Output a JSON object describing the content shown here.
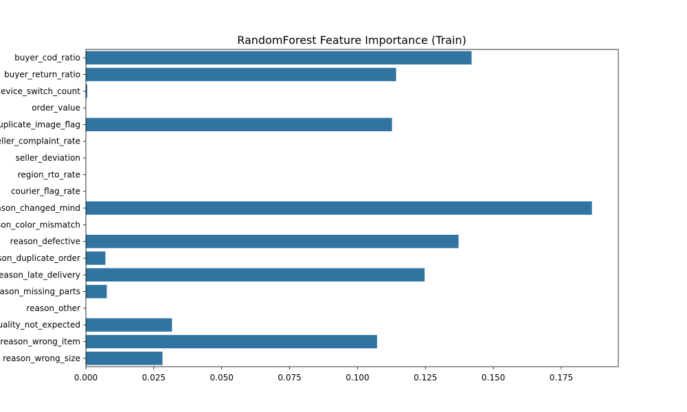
{
  "chart_data": {
    "type": "bar",
    "orientation": "horizontal",
    "title": "RandomForest Feature Importance (Train)",
    "xlabel": "",
    "ylabel": "",
    "xlim": [
      0,
      0.196
    ],
    "xticks": [
      "0.000",
      "0.025",
      "0.050",
      "0.075",
      "0.100",
      "0.125",
      "0.150",
      "0.175"
    ],
    "grid": false,
    "bar_color": "#3274a1",
    "categories": [
      "buyer_cod_ratio",
      "buyer_return_ratio",
      "device_switch_count",
      "order_value",
      "duplicate_image_flag",
      "seller_complaint_rate",
      "seller_deviation",
      "region_rto_rate",
      "courier_flag_rate",
      "reason_changed_mind",
      "reason_color_mismatch",
      "reason_defective",
      "reason_duplicate_order",
      "reason_late_delivery",
      "reason_missing_parts",
      "reason_other",
      "reason_quality_not_expected",
      "reason_wrong_item",
      "reason_wrong_size"
    ],
    "values": [
      0.142,
      0.1142,
      0.0005,
      0.0,
      0.1127,
      0.0,
      0.0,
      0.0,
      0.0,
      0.1863,
      0.0,
      0.1372,
      0.0072,
      0.1247,
      0.0077,
      0.0,
      0.0317,
      0.1072,
      0.0282
    ]
  }
}
